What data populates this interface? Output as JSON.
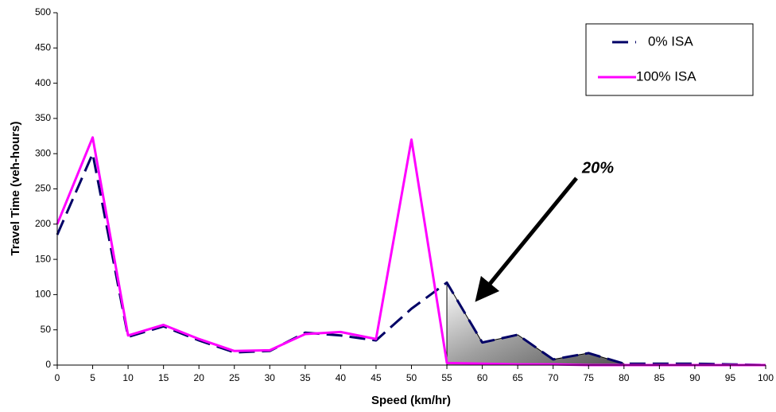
{
  "chart_data": {
    "type": "line",
    "x_label": "Speed (km/hr)",
    "y_label": "Travel Time (veh-hours)",
    "x": [
      0,
      5,
      10,
      15,
      20,
      25,
      30,
      35,
      40,
      45,
      50,
      55,
      60,
      65,
      70,
      75,
      80,
      85,
      90,
      95,
      100
    ],
    "series": [
      {
        "name": "0% ISA",
        "color": "#000066",
        "dashed": true,
        "values": [
          185,
          300,
          40,
          55,
          35,
          18,
          20,
          46,
          42,
          35,
          80,
          117,
          32,
          43,
          8,
          17,
          2,
          2,
          2,
          1,
          0
        ]
      },
      {
        "name": "100% ISA",
        "color": "#ff00ff",
        "dashed": false,
        "values": [
          200,
          323,
          42,
          57,
          37,
          20,
          21,
          44,
          47,
          37,
          320,
          3,
          2,
          1,
          1,
          0,
          0,
          0,
          0,
          0,
          0
        ]
      }
    ],
    "xlim": [
      0,
      100
    ],
    "xticks": [
      0,
      5,
      10,
      15,
      20,
      25,
      30,
      35,
      40,
      45,
      50,
      55,
      60,
      65,
      70,
      75,
      80,
      85,
      90,
      95,
      100
    ],
    "ylim": [
      0,
      500
    ],
    "yticks": [
      0,
      50,
      100,
      150,
      200,
      250,
      300,
      350,
      400,
      450,
      500
    ],
    "grid": false,
    "legend": "upper right",
    "shade_xrange": [
      55,
      80
    ],
    "annotation": "20%"
  }
}
